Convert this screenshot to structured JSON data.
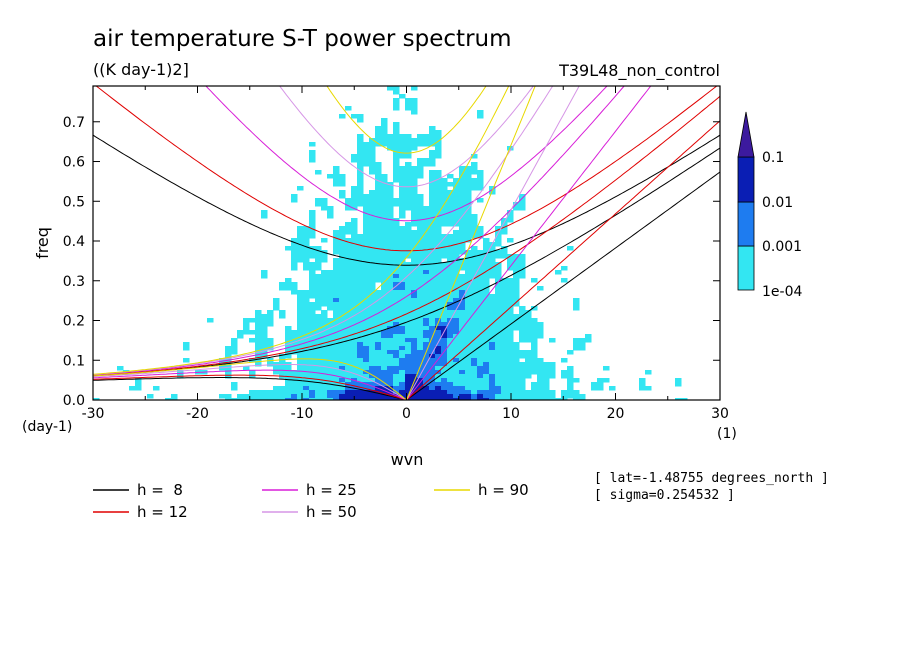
{
  "chart_data": {
    "type": "heatmap",
    "title": "air temperature S-T power spectrum",
    "subtitle": "((K day-1)2]",
    "run_label": "T39L48_non_control",
    "xlabel": "wvn",
    "ylabel": "freq",
    "x_unit": "(1)",
    "y_unit": "(day-1)",
    "xlim": [
      -30,
      30
    ],
    "ylim": [
      0,
      0.79
    ],
    "x_ticks": [
      -30,
      -20,
      -10,
      0,
      10,
      20,
      30
    ],
    "x_tick_labels": [
      "-30",
      "-20",
      "-10",
      "0",
      "10",
      "20",
      "30"
    ],
    "y_ticks": [
      0,
      0.1,
      0.2,
      0.3,
      0.4,
      0.5,
      0.6,
      0.7
    ],
    "y_tick_labels": [
      "0.0",
      "0.1",
      "0.2",
      "0.3",
      "0.4",
      "0.5",
      "0.6",
      "0.7"
    ],
    "colorbar": {
      "levels": [
        "1e-04",
        "0.001",
        "0.01",
        "0.1"
      ],
      "colors": [
        "#33e6f2",
        "#1e7cf0",
        "#0a1eb4",
        "#3c1a9e"
      ],
      "extend": "max"
    },
    "grid": false,
    "dispersion_curves": [
      {
        "name": "h =  8",
        "h": 8,
        "color": "#000000"
      },
      {
        "name": "h = 12",
        "h": 12,
        "color": "#e00000"
      },
      {
        "name": "h = 25",
        "h": 25,
        "color": "#d81ed8"
      },
      {
        "name": "h = 50",
        "h": 50,
        "color": "#d696e6"
      },
      {
        "name": "h = 90",
        "h": 90,
        "color": "#e8d800"
      }
    ],
    "legend_position": "bottom-left",
    "annotations": [
      "[ lat=-1.48755 degrees_north ]",
      "[ sigma=0.254532 ]"
    ]
  }
}
